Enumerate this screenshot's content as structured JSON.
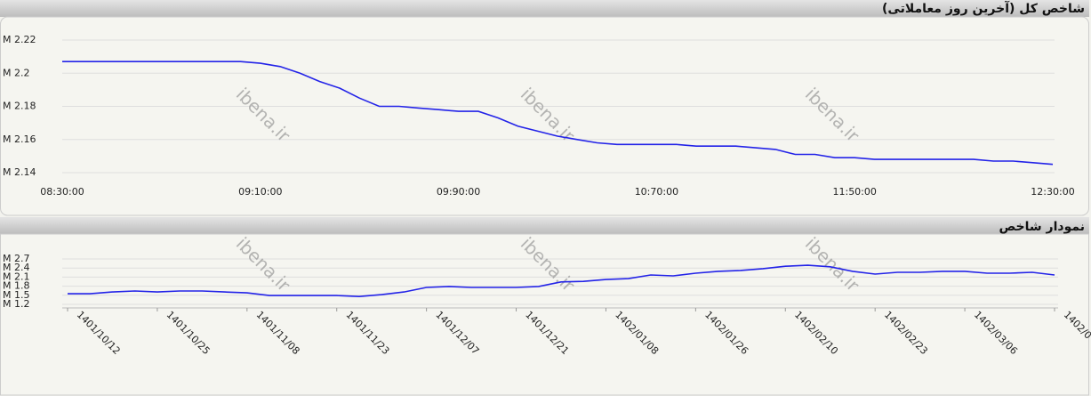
{
  "chart_data": [
    {
      "type": "line",
      "title": "شاخص کل (آخرین روز معاملاتی)",
      "watermark": "ibena.ir",
      "categories": [
        "08:30:00",
        null,
        null,
        null,
        null,
        null,
        null,
        null,
        null,
        null,
        "09:10:00",
        null,
        null,
        null,
        null,
        null,
        null,
        null,
        null,
        null,
        "09:90:00",
        null,
        null,
        null,
        null,
        null,
        null,
        null,
        null,
        null,
        "10:70:00",
        null,
        null,
        null,
        null,
        null,
        null,
        null,
        null,
        null,
        "11:50:00",
        null,
        null,
        null,
        null,
        null,
        null,
        null,
        null,
        null,
        "12:30:00"
      ],
      "series": [
        {
          "color": "#2323e8",
          "values": [
            2.207,
            2.207,
            2.207,
            2.207,
            2.207,
            2.207,
            2.207,
            2.207,
            2.207,
            2.207,
            2.206,
            2.204,
            2.2,
            2.195,
            2.191,
            2.185,
            2.18,
            2.18,
            2.179,
            2.178,
            2.177,
            2.177,
            2.173,
            2.168,
            2.165,
            2.162,
            2.16,
            2.158,
            2.157,
            2.157,
            2.157,
            2.157,
            2.156,
            2.156,
            2.156,
            2.155,
            2.154,
            2.151,
            2.151,
            2.149,
            2.149,
            2.148,
            2.148,
            2.148,
            2.148,
            2.148,
            2.148,
            2.147,
            2.147,
            2.146,
            2.145
          ]
        }
      ],
      "ylim": [
        2.14,
        2.22
      ],
      "yticks": [
        {
          "value": 2.22,
          "label": "M 2.22"
        },
        {
          "value": 2.2,
          "label": "M 2.2"
        },
        {
          "value": 2.18,
          "label": "M 2.18"
        },
        {
          "value": 2.16,
          "label": "M 2.16"
        },
        {
          "value": 2.14,
          "label": "M 2.14"
        }
      ],
      "grid": true
    },
    {
      "type": "line",
      "title": "نمودار شاخص",
      "watermark": "ibena.ir",
      "categories": [
        "1401/10/12",
        null,
        null,
        null,
        "1401/10/25",
        null,
        null,
        null,
        "1401/11/08",
        null,
        null,
        null,
        "1401/11/23",
        null,
        null,
        null,
        "1401/12/07",
        null,
        null,
        null,
        "1401/12/21",
        null,
        null,
        null,
        "1402/01/08",
        null,
        null,
        null,
        "1402/01/26",
        null,
        null,
        null,
        "1402/02/10",
        null,
        null,
        null,
        "1402/02/23",
        null,
        null,
        null,
        "1402/03/06",
        null,
        null,
        null,
        "1402/0"
      ],
      "series": [
        {
          "color": "#2323e8",
          "values": [
            1.55,
            1.55,
            1.61,
            1.64,
            1.61,
            1.64,
            1.64,
            1.61,
            1.58,
            1.49,
            1.49,
            1.49,
            1.49,
            1.46,
            1.52,
            1.61,
            1.76,
            1.79,
            1.76,
            1.76,
            1.76,
            1.79,
            1.94,
            1.96,
            2.02,
            2.05,
            2.17,
            2.14,
            2.23,
            2.29,
            2.32,
            2.38,
            2.46,
            2.49,
            2.44,
            2.29,
            2.2,
            2.26,
            2.26,
            2.29,
            2.29,
            2.23,
            2.23,
            2.26,
            2.17
          ]
        }
      ],
      "ylim": [
        1.2,
        2.7
      ],
      "yticks": [
        {
          "value": 2.7,
          "label": "M 2.7"
        },
        {
          "value": 2.4,
          "label": "M 2.4"
        },
        {
          "value": 2.1,
          "label": "M 2.1"
        },
        {
          "value": 1.8,
          "label": "M 1.8"
        },
        {
          "value": 1.5,
          "label": "M 1.5"
        },
        {
          "value": 1.2,
          "label": "M 1.2"
        }
      ],
      "grid": true
    }
  ]
}
